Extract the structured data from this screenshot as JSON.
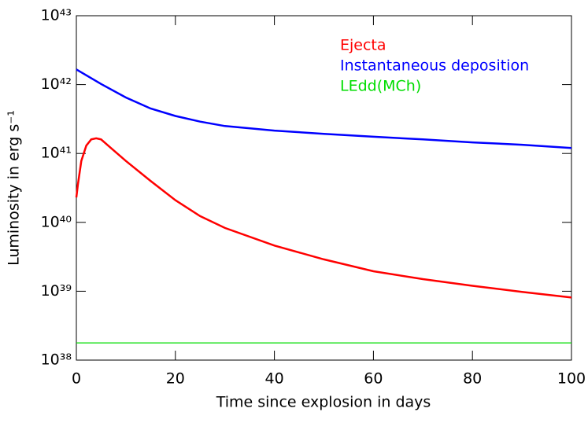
{
  "chart_data": {
    "type": "line",
    "xlabel": "Time since explosion in days",
    "ylabel": "Luminosity in erg s⁻¹",
    "xlim": [
      0,
      100
    ],
    "xticks": [
      0,
      20,
      40,
      60,
      80,
      100
    ],
    "ylim": [
      1e+38,
      1e+43
    ],
    "yscale": "log",
    "yticks": [
      {
        "value": 1e+38,
        "label": "10³⁸"
      },
      {
        "value": 1e+39,
        "label": "10³⁹"
      },
      {
        "value": 1e+40,
        "label": "10⁴⁰"
      },
      {
        "value": 1e+41,
        "label": "10⁴¹"
      },
      {
        "value": 1e+42,
        "label": "10⁴²"
      },
      {
        "value": 1e+43,
        "label": "10⁴³"
      }
    ],
    "legend": "upper right",
    "series": [
      {
        "name": "Ejecta",
        "color": "#ff0000",
        "x": [
          0,
          0.3,
          1,
          2,
          3,
          4,
          5,
          7,
          10,
          15,
          20,
          25,
          30,
          40,
          50,
          60,
          70,
          80,
          90,
          100
        ],
        "values": [
          2.3e+40,
          3.5e+40,
          7.8e+40,
          1.3e+41,
          1.6e+41,
          1.66e+41,
          1.6e+41,
          1.2e+41,
          7.8e+40,
          4e+40,
          2.1e+40,
          1.23e+40,
          8.3e+39,
          4.6e+39,
          2.9e+39,
          1.95e+39,
          1.5e+39,
          1.2e+39,
          9.8e+38,
          8.1e+38
        ]
      },
      {
        "name": "Instantaneous deposition",
        "color": "#0000ff",
        "x": [
          0,
          5,
          10,
          15,
          20,
          25,
          30,
          40,
          50,
          60,
          70,
          80,
          90,
          100
        ],
        "values": [
          1.66e+42,
          1.02e+42,
          6.5e+41,
          4.5e+41,
          3.5e+41,
          2.9e+41,
          2.5e+41,
          2.15e+41,
          1.93e+41,
          1.75e+41,
          1.6e+41,
          1.45e+41,
          1.34e+41,
          1.2e+41
        ]
      },
      {
        "name": "LEdd(MCh)",
        "color": "#00dd00",
        "x": [
          0,
          100
        ],
        "values": [
          1.78e+38,
          1.78e+38
        ]
      }
    ]
  }
}
